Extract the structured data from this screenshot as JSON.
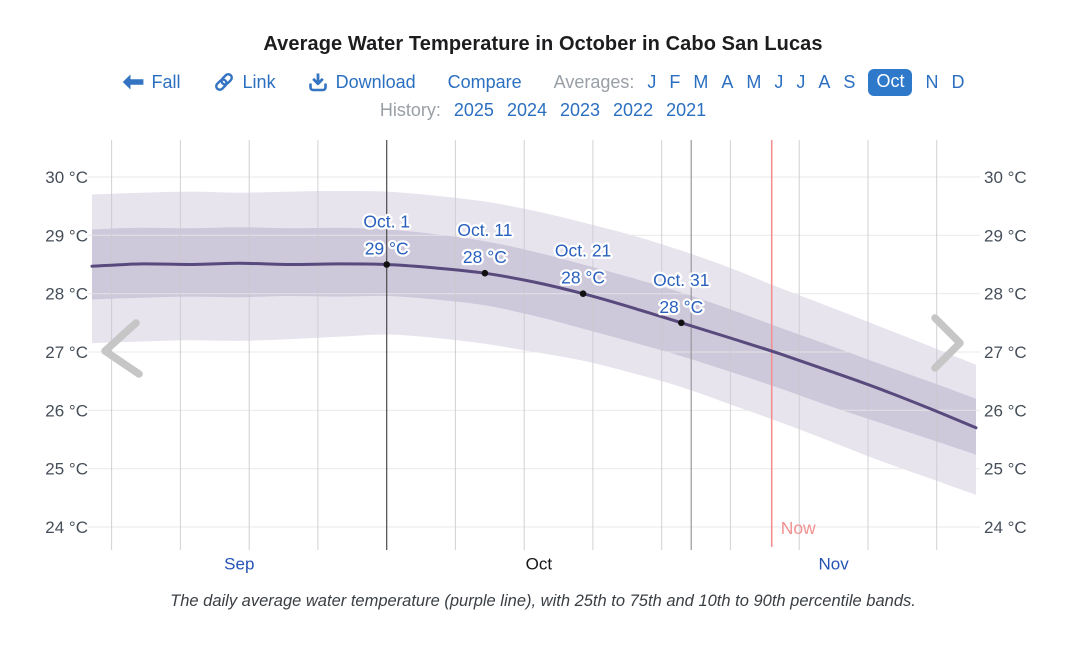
{
  "page": {
    "title": "Average Water Temperature in October in Cabo San Lucas",
    "caption": "The daily average water temperature (purple line), with 25th to 75th and 10th to 90th percentile bands."
  },
  "toolbar": {
    "back_label": "Fall",
    "link_label": "Link",
    "download_label": "Download",
    "compare_label": "Compare",
    "averages_label": "Averages:",
    "months": [
      {
        "label": "J"
      },
      {
        "label": "F"
      },
      {
        "label": "M"
      },
      {
        "label": "A"
      },
      {
        "label": "M"
      },
      {
        "label": "J"
      },
      {
        "label": "J"
      },
      {
        "label": "A"
      },
      {
        "label": "S"
      },
      {
        "label": "Oct",
        "selected": true
      },
      {
        "label": "N"
      },
      {
        "label": "D"
      }
    ],
    "history_label": "History:",
    "history_years": [
      "2025",
      "2024",
      "2023",
      "2022",
      "2021"
    ]
  },
  "chart_data": {
    "type": "area",
    "title": "Average Water Temperature in October in Cabo San Lucas",
    "ylabel_unit": "°C",
    "ylim": [
      23.6,
      30.6
    ],
    "grid": true,
    "y_axis": {
      "ticks": [
        {
          "value": 30,
          "label": "30 °C"
        },
        {
          "value": 29,
          "label": "29 °C"
        },
        {
          "value": 28,
          "label": "28 °C"
        },
        {
          "value": 27,
          "label": "27 °C"
        },
        {
          "value": 26,
          "label": "26 °C"
        },
        {
          "value": 25,
          "label": "25 °C"
        },
        {
          "value": 24,
          "label": "24 °C"
        }
      ]
    },
    "x_axis": {
      "start_date": "Sep 1",
      "end_date": "Nov 30",
      "month_labels": [
        {
          "label": "Sep",
          "day": 15,
          "current": false
        },
        {
          "label": "Oct",
          "day": 45.5,
          "current": true
        },
        {
          "label": "Nov",
          "day": 75.5,
          "current": false
        }
      ],
      "weekly_gridline_days": [
        2,
        9,
        16,
        23,
        37,
        44,
        51,
        58,
        65,
        72,
        79,
        86
      ],
      "month_gridlines": [
        {
          "date": "Oct 1",
          "day": 30
        },
        {
          "date": "Nov 1",
          "day": 61
        }
      ]
    },
    "series_names": {
      "mean": "Daily average water temperature",
      "inner_band": "25th to 75th percentile band",
      "outer_band": "10th to 90th percentile band"
    },
    "series": {
      "days": [
        0,
        5,
        10,
        15,
        20,
        25,
        30,
        35,
        40,
        45,
        50,
        55,
        60,
        65,
        70,
        75,
        80,
        85,
        90
      ],
      "mean": [
        28.47,
        28.51,
        28.5,
        28.52,
        28.5,
        28.51,
        28.5,
        28.44,
        28.35,
        28.2,
        28.0,
        27.76,
        27.5,
        27.24,
        26.97,
        26.68,
        26.38,
        26.05,
        25.7
      ],
      "p75": [
        29.1,
        29.13,
        29.12,
        29.14,
        29.12,
        29.13,
        29.1,
        29.02,
        28.9,
        28.72,
        28.5,
        28.27,
        28.02,
        27.73,
        27.42,
        27.12,
        26.81,
        26.51,
        26.2
      ],
      "p25": [
        27.9,
        27.93,
        27.95,
        27.94,
        27.96,
        27.95,
        27.96,
        27.9,
        27.8,
        27.62,
        27.4,
        27.17,
        26.93,
        26.66,
        26.38,
        26.08,
        25.8,
        25.52,
        25.24
      ],
      "p90": [
        29.7,
        29.73,
        29.75,
        29.73,
        29.75,
        29.76,
        29.75,
        29.68,
        29.58,
        29.42,
        29.22,
        29.0,
        28.74,
        28.44,
        28.1,
        27.78,
        27.45,
        27.12,
        26.78
      ],
      "p10": [
        27.15,
        27.18,
        27.2,
        27.19,
        27.22,
        27.26,
        27.3,
        27.24,
        27.14,
        27.0,
        26.85,
        26.64,
        26.4,
        26.1,
        25.8,
        25.48,
        25.15,
        24.85,
        24.55
      ]
    },
    "annotations": [
      {
        "day": 30,
        "date_label": "Oct. 1",
        "value_label": "29 °C",
        "value": 28.5
      },
      {
        "day": 40,
        "date_label": "Oct. 11",
        "value_label": "28 °C",
        "value": 28.35
      },
      {
        "day": 50,
        "date_label": "Oct. 21",
        "value_label": "28 °C",
        "value": 28.0
      },
      {
        "day": 60,
        "date_label": "Oct. 31",
        "value_label": "28 °C",
        "value": 27.5
      }
    ],
    "now_marker": {
      "day": 69.2,
      "label": "Now"
    },
    "colors": {
      "mean_line": "#594a7d",
      "inner_band": "#cec8db",
      "outer_band": "#e7e4ee",
      "annotation_text": "#2a60bd",
      "annotation_dot": "#111111",
      "now": "#f09090",
      "month_link": "#2453b6",
      "month_current": "#15161a",
      "axis_text": "#454e59",
      "grid_h": "#e7e7e7",
      "grid_v": "#c9c9cd",
      "grid_month_oct": "#4a4a4a",
      "grid_month_nov": "#98989c",
      "chevron": "#c6c6c6"
    }
  },
  "ui_colors": {
    "link_blue": "#2b6fc0",
    "chip_bg": "#2e79ca",
    "chip_text": "#ffffff",
    "muted_label": "#999fa6",
    "title_text": "#1d1d1f",
    "caption_text": "#3a3f44"
  }
}
